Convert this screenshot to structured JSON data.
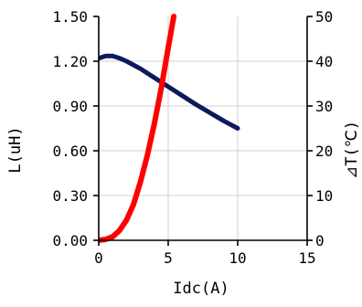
{
  "chart_data": {
    "type": "line",
    "title": "",
    "xlabel": "Idc(A)",
    "ylabel_left": "L(uH)",
    "ylabel_right": "⊿T(℃)",
    "xlim": [
      0,
      15
    ],
    "ylim_left": [
      0,
      1.5
    ],
    "ylim_right": [
      0,
      50
    ],
    "x_ticks": [
      "0",
      "5",
      "10",
      "15"
    ],
    "y_left_ticks": [
      "0.00",
      "0.30",
      "0.60",
      "0.90",
      "1.20",
      "1.50"
    ],
    "y_right_ticks": [
      "0",
      "10",
      "20",
      "30",
      "40",
      "50"
    ],
    "grid": true,
    "legend": "none",
    "series": [
      {
        "axis": "left",
        "color": "#0d1a5c",
        "points": [
          [
            0,
            1.22
          ],
          [
            0.5,
            1.235
          ],
          [
            1,
            1.235
          ],
          [
            1.5,
            1.22
          ],
          [
            2,
            1.2
          ],
          [
            3,
            1.15
          ],
          [
            4,
            1.09
          ],
          [
            5,
            1.03
          ],
          [
            6,
            0.97
          ],
          [
            7,
            0.91
          ],
          [
            8,
            0.855
          ],
          [
            9,
            0.8
          ],
          [
            10,
            0.75
          ]
        ]
      },
      {
        "axis": "right",
        "color": "#ff0000",
        "points": [
          [
            0,
            0
          ],
          [
            0.5,
            0.2
          ],
          [
            1,
            0.8
          ],
          [
            1.5,
            2.2
          ],
          [
            2,
            4.5
          ],
          [
            2.5,
            8
          ],
          [
            3,
            13
          ],
          [
            3.5,
            19
          ],
          [
            4,
            26
          ],
          [
            4.5,
            34
          ],
          [
            5,
            43
          ],
          [
            5.4,
            50
          ]
        ]
      }
    ]
  }
}
